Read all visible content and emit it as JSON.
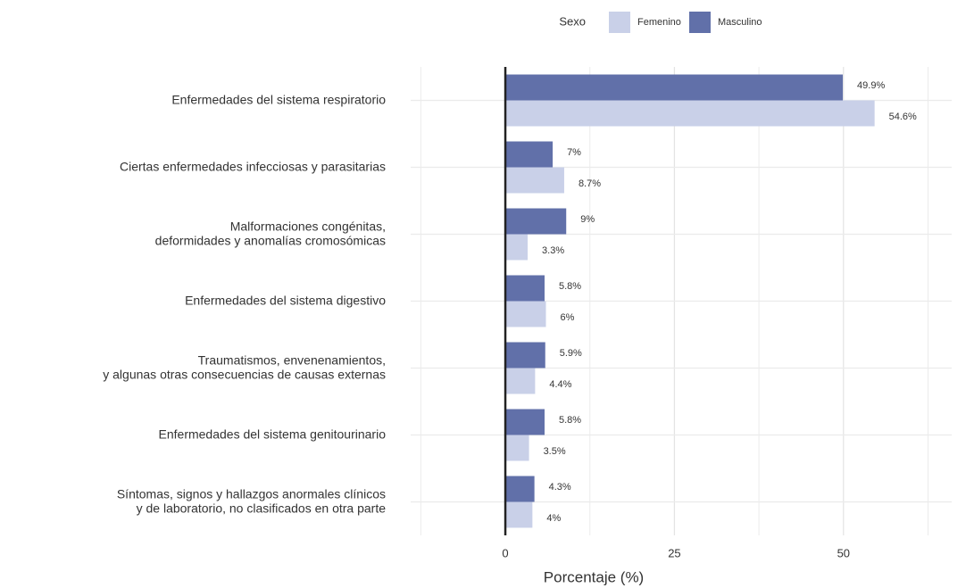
{
  "chart_data": {
    "type": "bar",
    "orientation": "horizontal",
    "x_label": "Porcentaje (%)",
    "legend_title": "Sexo",
    "legend_position": "top",
    "categories": [
      "Enfermedades del sistema respiratorio",
      "Ciertas enfermedades infecciosas y parasitarias",
      "Malformaciones congénitas,\ndeformidades y anomalías cromosómicas",
      "Enfermedades del sistema digestivo",
      "Traumatismos, envenenamientos,\ny algunas otras consecuencias de causas externas",
      "Enfermedades del sistema genitourinario",
      "Síntomas, signos y hallazgos anormales clínicos\ny de laboratorio, no clasificados en otra parte"
    ],
    "series": [
      {
        "name": "Femenino",
        "color": "#c9d0e8",
        "values": [
          54.6,
          8.7,
          3.3,
          6,
          4.4,
          3.5,
          4
        ],
        "value_labels": [
          "54.6%",
          "8.7%",
          "3.3%",
          "6%",
          "4.4%",
          "3.5%",
          "4%"
        ]
      },
      {
        "name": "Masculino",
        "color": "#6170a9",
        "values": [
          49.9,
          7,
          9,
          5.8,
          5.9,
          5.8,
          4.3
        ],
        "value_labels": [
          "49.9%",
          "7%",
          "9%",
          "5.8%",
          "5.9%",
          "5.8%",
          "4.3%"
        ]
      }
    ],
    "xlim": [
      -14,
      66
    ],
    "xticks": [
      0,
      25,
      50
    ],
    "minor_xticks": [
      -12.5,
      12.5,
      37.5,
      62.5
    ],
    "grid": true
  }
}
